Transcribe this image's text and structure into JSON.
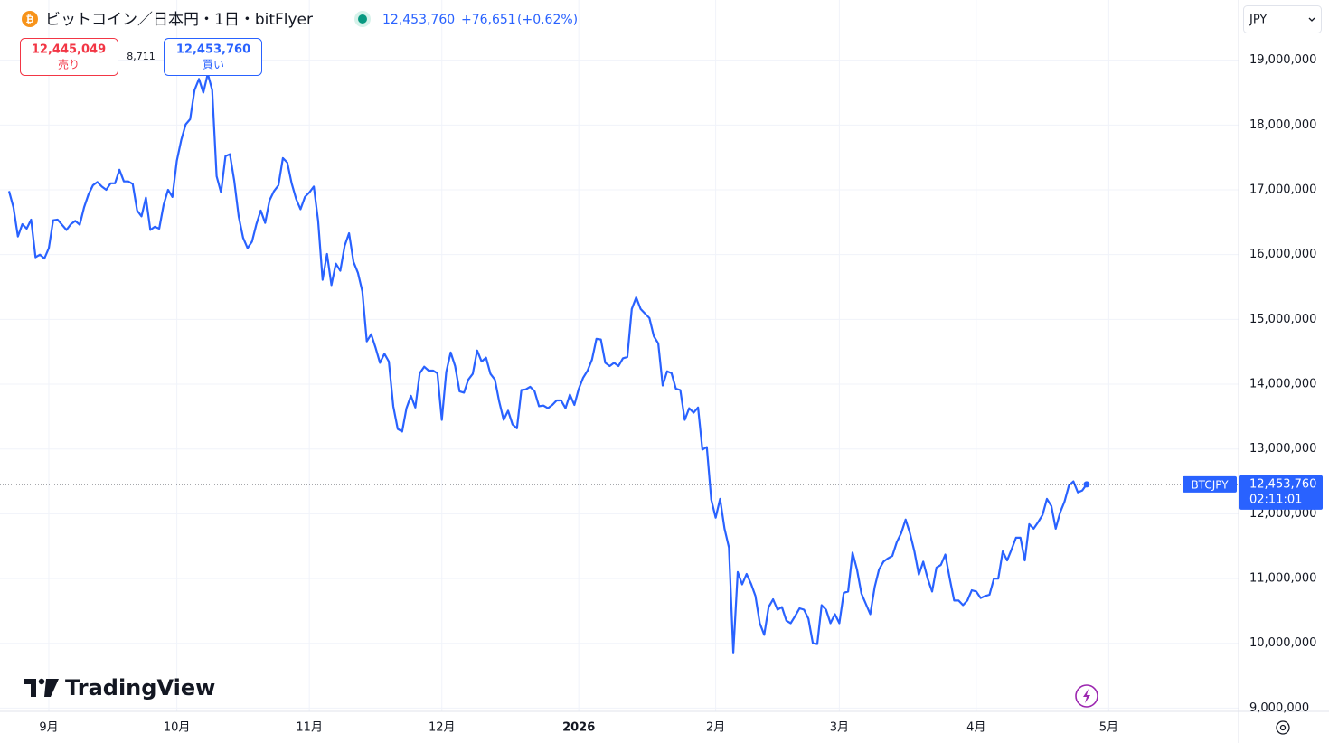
{
  "header": {
    "title": "ビットコイン／日本円・1日・bitFlyer",
    "last": "12,453,760",
    "change": "+76,651",
    "change_pct": "(+0.62%)",
    "currency": "JPY"
  },
  "order_panel": {
    "sell_price": "12,445,049",
    "sell_label": "売り",
    "spread": "8,711",
    "buy_price": "12,453,760",
    "buy_label": "買い"
  },
  "price_tag": {
    "symbol": "BTCJPY",
    "price": "12,453,760",
    "countdown": "02:11:01"
  },
  "logo": "TradingView",
  "chart_data": {
    "type": "line",
    "color": "#2962ff",
    "grid": true,
    "categories": [
      null,
      null,
      null,
      null,
      null,
      null,
      null,
      null,
      null,
      "9月",
      null,
      null,
      null,
      null,
      null,
      null,
      null,
      null,
      null,
      null,
      null,
      null,
      null,
      null,
      null,
      null,
      null,
      null,
      null,
      null,
      null,
      null,
      null,
      null,
      null,
      null,
      null,
      null,
      "10月",
      null,
      null,
      null,
      null,
      null,
      null,
      null,
      null,
      null,
      null,
      null,
      null,
      null,
      null,
      null,
      null,
      null,
      null,
      null,
      null,
      null,
      null,
      null,
      null,
      null,
      null,
      null,
      null,
      null,
      "11月",
      null,
      null,
      null,
      null,
      null,
      null,
      null,
      null,
      null,
      null,
      null,
      null,
      null,
      null,
      null,
      null,
      null,
      null,
      null,
      null,
      null,
      null,
      null,
      null,
      null,
      null,
      null,
      null,
      null,
      "12月",
      null,
      null,
      null,
      null,
      null,
      null,
      null,
      null,
      null,
      null,
      null,
      null,
      null,
      null,
      null,
      null,
      null,
      null,
      null,
      null,
      null,
      null,
      null,
      null,
      null,
      null,
      null,
      null,
      null,
      null,
      "2026",
      null,
      null,
      null,
      null,
      null,
      null,
      null,
      null,
      null,
      null,
      null,
      null,
      null,
      null,
      null,
      null,
      null,
      null,
      null,
      null,
      null,
      null,
      null,
      null,
      null,
      null,
      null,
      null,
      null,
      null,
      "2月",
      null,
      null,
      null,
      null,
      null,
      null,
      null,
      null,
      null,
      null,
      null,
      null,
      null,
      null,
      null,
      null,
      null,
      null,
      null,
      null,
      null,
      null,
      null,
      null,
      null,
      null,
      null,
      "3月",
      null,
      null,
      null,
      null,
      null,
      null,
      null,
      null,
      null,
      null,
      null,
      null,
      null,
      null,
      null,
      null,
      null,
      null,
      null,
      null,
      null,
      null,
      null,
      null,
      null,
      null,
      null,
      null,
      null,
      null,
      "4月",
      null,
      null,
      null,
      null,
      null,
      null,
      null,
      null,
      null,
      null,
      null,
      null,
      null,
      null,
      null,
      null,
      null,
      null,
      null,
      null,
      null,
      null,
      null,
      null,
      null,
      null,
      null,
      null,
      null,
      "5月"
    ],
    "values": [
      16980000,
      16730000,
      16280000,
      16470000,
      16400000,
      16540000,
      15960000,
      16000000,
      15940000,
      16100000,
      16530000,
      16540000,
      16460000,
      16380000,
      16470000,
      16520000,
      16460000,
      16730000,
      16930000,
      17070000,
      17120000,
      17050000,
      17000000,
      17100000,
      17100000,
      17310000,
      17130000,
      17130000,
      17090000,
      16680000,
      16590000,
      16880000,
      16380000,
      16430000,
      16400000,
      16770000,
      17000000,
      16890000,
      17450000,
      17770000,
      18010000,
      18090000,
      18540000,
      18710000,
      18500000,
      18790000,
      18540000,
      17210000,
      16960000,
      17520000,
      17550000,
      17140000,
      16590000,
      16260000,
      16100000,
      16200000,
      16470000,
      16680000,
      16490000,
      16840000,
      16980000,
      17070000,
      17490000,
      17420000,
      17100000,
      16860000,
      16700000,
      16890000,
      16960000,
      17050000,
      16520000,
      15610000,
      16010000,
      15530000,
      15860000,
      15750000,
      16140000,
      16330000,
      15890000,
      15720000,
      15430000,
      14660000,
      14770000,
      14560000,
      14330000,
      14470000,
      14350000,
      13660000,
      13310000,
      13270000,
      13630000,
      13820000,
      13640000,
      14170000,
      14270000,
      14210000,
      14210000,
      14170000,
      13450000,
      14190000,
      14490000,
      14280000,
      13890000,
      13870000,
      14070000,
      14160000,
      14520000,
      14350000,
      14410000,
      14160000,
      14070000,
      13730000,
      13450000,
      13590000,
      13380000,
      13320000,
      13910000,
      13920000,
      13960000,
      13890000,
      13660000,
      13670000,
      13630000,
      13680000,
      13750000,
      13750000,
      13630000,
      13840000,
      13680000,
      13930000,
      14100000,
      14210000,
      14380000,
      14700000,
      14690000,
      14330000,
      14280000,
      14330000,
      14280000,
      14400000,
      14420000,
      15160000,
      15340000,
      15160000,
      15090000,
      15020000,
      14740000,
      14630000,
      13980000,
      14200000,
      14170000,
      13930000,
      13910000,
      13450000,
      13630000,
      13560000,
      13640000,
      12990000,
      13030000,
      12220000,
      11940000,
      12230000,
      11770000,
      11480000,
      9860000,
      11100000,
      10910000,
      11070000,
      10920000,
      10730000,
      10310000,
      10130000,
      10560000,
      10680000,
      10520000,
      10560000,
      10350000,
      10310000,
      10420000,
      10540000,
      10520000,
      10380000,
      10000000,
      9990000,
      10590000,
      10520000,
      10310000,
      10450000,
      10310000,
      10780000,
      10800000,
      11400000,
      11140000,
      10770000,
      10610000,
      10450000,
      10870000,
      11140000,
      11260000,
      11310000,
      11350000,
      11560000,
      11700000,
      11910000,
      11700000,
      11420000,
      11060000,
      11260000,
      11000000,
      10800000,
      11170000,
      11210000,
      11370000,
      11000000,
      10660000,
      10660000,
      10590000,
      10660000,
      10820000,
      10800000,
      10700000,
      10730000,
      10750000,
      11000000,
      11000000,
      11420000,
      11280000,
      11450000,
      11630000,
      11630000,
      11280000,
      11840000,
      11770000,
      11870000,
      11980000,
      12230000,
      12120000,
      11770000,
      12020000,
      12190000,
      12440000,
      12500000,
      12330000,
      12360000,
      12453760,
      null,
      null,
      null,
      null,
      null
    ],
    "ylim": [
      8950000,
      19930000
    ],
    "yticks": [
      {
        "value": 9000000,
        "label": "9,000,000"
      },
      {
        "value": 10000000,
        "label": "10,000,000"
      },
      {
        "value": 11000000,
        "label": "11,000,000"
      },
      {
        "value": 12000000,
        "label": "12,000,000"
      },
      {
        "value": 13000000,
        "label": "13,000,000"
      },
      {
        "value": 14000000,
        "label": "14,000,000"
      },
      {
        "value": 15000000,
        "label": "15,000,000"
      },
      {
        "value": 16000000,
        "label": "16,000,000"
      },
      {
        "value": 17000000,
        "label": "17,000,000"
      },
      {
        "value": 18000000,
        "label": "18,000,000"
      },
      {
        "value": 19000000,
        "label": "19,000,000"
      }
    ]
  }
}
